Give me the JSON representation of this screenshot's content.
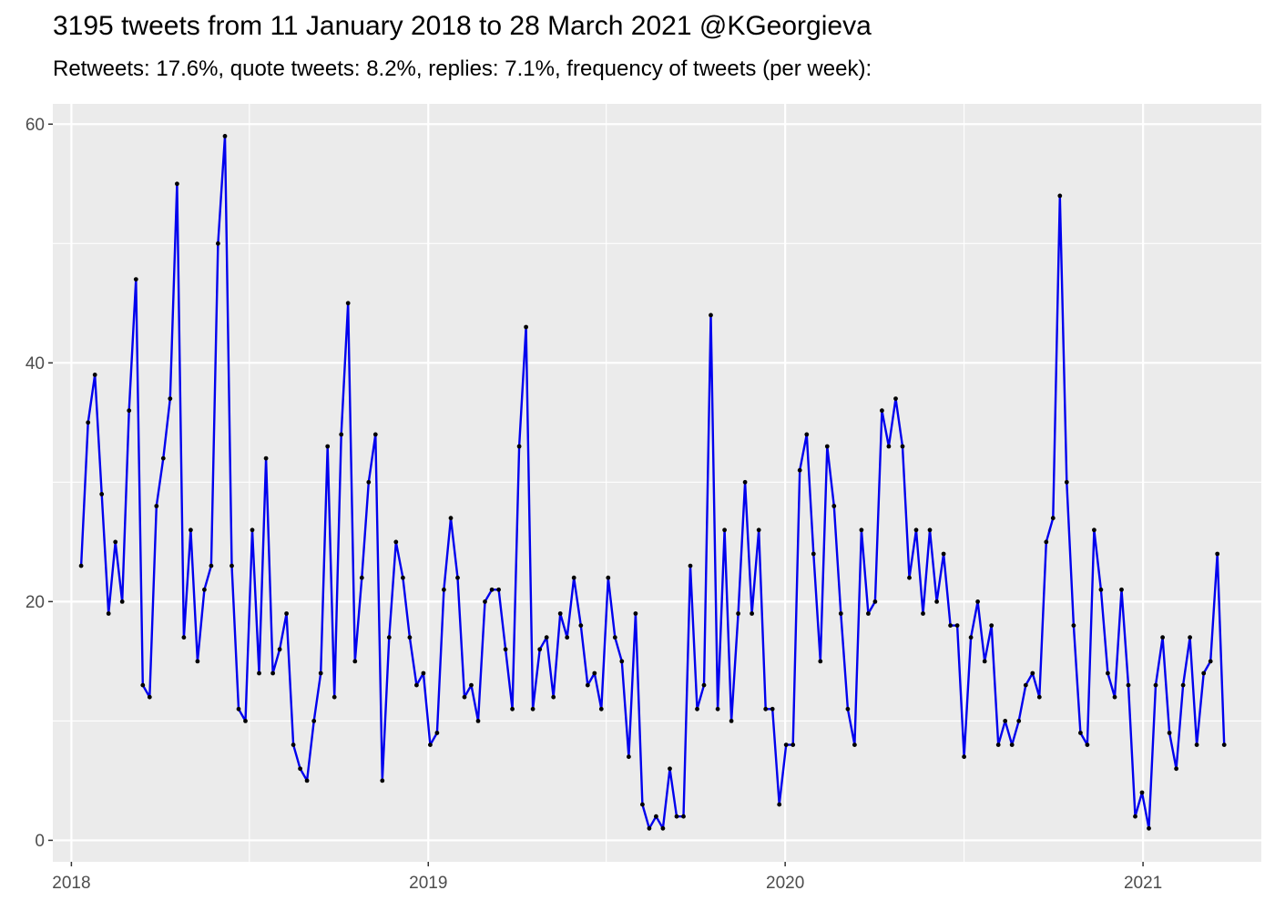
{
  "header": {
    "title": "3195 tweets from 11 January 2018 to 28 March 2021 @KGeorgieva",
    "subtitle": "Retweets: 17.6%, quote tweets: 8.2%, replies: 7.1%, frequency of tweets (per week):"
  },
  "colors": {
    "panel_background": "#ebebeb",
    "grid_major": "#ffffff",
    "line": "#0000ee",
    "point": "#000000",
    "tick_text": "#4d4d4d"
  },
  "chart_data": {
    "type": "line",
    "x_kind": "date",
    "title": "3195 tweets from 11 January 2018 to 28 March 2021 @KGeorgieva",
    "subtitle": "Retweets: 17.6%, quote tweets: 8.2%, replies: 7.1%, frequency of tweets (per week):",
    "xlabel": "",
    "ylabel": "",
    "xlim": [
      "2017-12-13",
      "2021-05-02"
    ],
    "ylim": [
      -1.8,
      61.7
    ],
    "x_ticks": [
      {
        "value": "2018-01-01",
        "label": "2018"
      },
      {
        "value": "2019-01-01",
        "label": "2019"
      },
      {
        "value": "2020-01-01",
        "label": "2020"
      },
      {
        "value": "2021-01-01",
        "label": "2021"
      }
    ],
    "y_ticks": [
      0,
      20,
      40,
      60
    ],
    "grid": true,
    "legend": "none",
    "series": [
      {
        "x": [
          "2018-01-11",
          "2018-01-18",
          "2018-01-25",
          "2018-02-01",
          "2018-02-08",
          "2018-02-15",
          "2018-02-22",
          "2018-03-01",
          "2018-03-08",
          "2018-03-15",
          "2018-03-22",
          "2018-03-29",
          "2018-04-05",
          "2018-04-12",
          "2018-04-19",
          "2018-04-26",
          "2018-05-03",
          "2018-05-10",
          "2018-05-17",
          "2018-05-24",
          "2018-05-31",
          "2018-06-07",
          "2018-06-14",
          "2018-06-21",
          "2018-06-28",
          "2018-07-05",
          "2018-07-12",
          "2018-07-19",
          "2018-07-26",
          "2018-08-02",
          "2018-08-09",
          "2018-08-16",
          "2018-08-23",
          "2018-08-30",
          "2018-09-06",
          "2018-09-13",
          "2018-09-20",
          "2018-09-27",
          "2018-10-04",
          "2018-10-11",
          "2018-10-18",
          "2018-10-25",
          "2018-11-01",
          "2018-11-08",
          "2018-11-15",
          "2018-11-22",
          "2018-11-29",
          "2018-12-06",
          "2018-12-13",
          "2018-12-20",
          "2018-12-27",
          "2019-01-03",
          "2019-01-10",
          "2019-01-17",
          "2019-01-24",
          "2019-01-31",
          "2019-02-07",
          "2019-02-14",
          "2019-02-21",
          "2019-02-28",
          "2019-03-07",
          "2019-03-14",
          "2019-03-21",
          "2019-03-28",
          "2019-04-04",
          "2019-04-11",
          "2019-04-18",
          "2019-04-25",
          "2019-05-02",
          "2019-05-09",
          "2019-05-16",
          "2019-05-23",
          "2019-05-30",
          "2019-06-06",
          "2019-06-13",
          "2019-06-20",
          "2019-06-27",
          "2019-07-04",
          "2019-07-11",
          "2019-07-18",
          "2019-07-25",
          "2019-08-01",
          "2019-08-08",
          "2019-08-15",
          "2019-08-22",
          "2019-08-29",
          "2019-09-05",
          "2019-09-12",
          "2019-09-19",
          "2019-09-26",
          "2019-10-03",
          "2019-10-10",
          "2019-10-17",
          "2019-10-24",
          "2019-10-31",
          "2019-11-07",
          "2019-11-14",
          "2019-11-21",
          "2019-11-28",
          "2019-12-05",
          "2019-12-12",
          "2019-12-19",
          "2019-12-26",
          "2020-01-02",
          "2020-01-09",
          "2020-01-16",
          "2020-01-23",
          "2020-01-30",
          "2020-02-06",
          "2020-02-13",
          "2020-02-20",
          "2020-02-27",
          "2020-03-05",
          "2020-03-12",
          "2020-03-19",
          "2020-03-26",
          "2020-04-02",
          "2020-04-09",
          "2020-04-16",
          "2020-04-23",
          "2020-04-30",
          "2020-05-07",
          "2020-05-14",
          "2020-05-21",
          "2020-05-28",
          "2020-06-04",
          "2020-06-11",
          "2020-06-18",
          "2020-06-25",
          "2020-07-02",
          "2020-07-09",
          "2020-07-16",
          "2020-07-23",
          "2020-07-30",
          "2020-08-06",
          "2020-08-13",
          "2020-08-20",
          "2020-08-27",
          "2020-09-03",
          "2020-09-10",
          "2020-09-17",
          "2020-09-24",
          "2020-10-01",
          "2020-10-08",
          "2020-10-15",
          "2020-10-22",
          "2020-10-29",
          "2020-11-05",
          "2020-11-12",
          "2020-11-19",
          "2020-11-26",
          "2020-12-03",
          "2020-12-10",
          "2020-12-17",
          "2020-12-24",
          "2020-12-31",
          "2021-01-07",
          "2021-01-14",
          "2021-01-21",
          "2021-01-28",
          "2021-02-04",
          "2021-02-11",
          "2021-02-18",
          "2021-02-25",
          "2021-03-04",
          "2021-03-11",
          "2021-03-18",
          "2021-03-25"
        ],
        "values": [
          23,
          35,
          39,
          29,
          19,
          25,
          20,
          36,
          47,
          13,
          12,
          28,
          32,
          37,
          55,
          17,
          26,
          15,
          21,
          23,
          50,
          59,
          23,
          11,
          10,
          26,
          14,
          32,
          14,
          16,
          19,
          8,
          6,
          5,
          10,
          14,
          33,
          12,
          34,
          45,
          15,
          22,
          30,
          34,
          5,
          17,
          25,
          22,
          17,
          13,
          14,
          8,
          9,
          21,
          27,
          22,
          12,
          13,
          10,
          20,
          21,
          21,
          16,
          11,
          33,
          43,
          11,
          16,
          17,
          12,
          19,
          17,
          22,
          18,
          13,
          14,
          11,
          22,
          17,
          15,
          7,
          19,
          3,
          1,
          2,
          1,
          6,
          2,
          2,
          23,
          11,
          13,
          44,
          11,
          26,
          10,
          19,
          30,
          19,
          26,
          11,
          11,
          3,
          8,
          8,
          31,
          34,
          24,
          15,
          33,
          28,
          19,
          11,
          8,
          26,
          19,
          20,
          36,
          33,
          37,
          33,
          22,
          26,
          19,
          26,
          20,
          24,
          18,
          18,
          7,
          17,
          20,
          15,
          18,
          8,
          10,
          8,
          10,
          13,
          14,
          12,
          25,
          27,
          54,
          30,
          18,
          9,
          8,
          26,
          21,
          14,
          12,
          21,
          13,
          2,
          4,
          1,
          13,
          17,
          9,
          6,
          13,
          17,
          8,
          14,
          15,
          24,
          8
        ]
      }
    ]
  }
}
